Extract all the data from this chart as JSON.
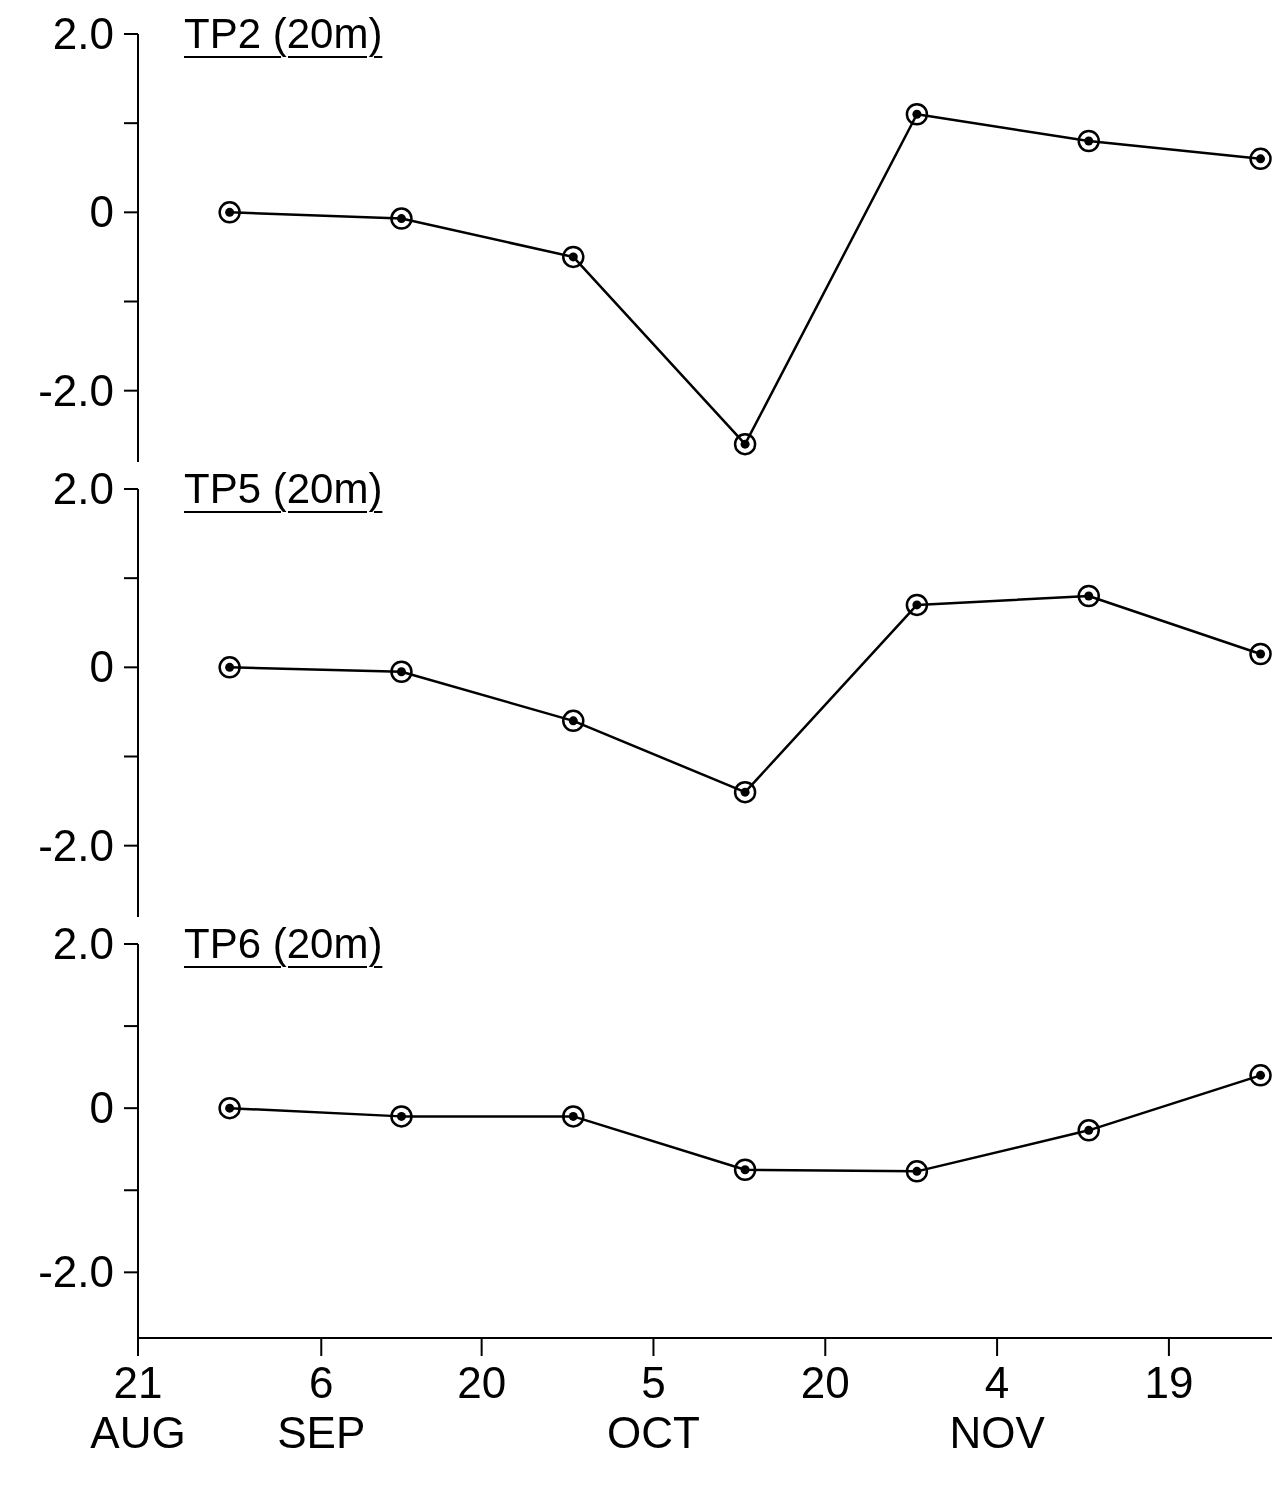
{
  "chart_data": [
    {
      "type": "line",
      "title": "TP2 (20m)",
      "x": [
        "--08-29",
        "--09-13",
        "--09-28",
        "--10-13",
        "--10-28",
        "--11-12",
        "--11-27"
      ],
      "series": [
        {
          "color": "#000000",
          "values": [
            0.0,
            -0.07,
            -0.5,
            -2.6,
            1.1,
            0.8,
            0.6
          ]
        }
      ],
      "xlim": [
        "--08-21",
        "--11-28"
      ],
      "xticks": [
        {
          "value": "--08-21",
          "label": "21\nAUG"
        },
        {
          "value": "--09-06",
          "label": "6\nSEP"
        },
        {
          "value": "--09-20",
          "label": "20"
        },
        {
          "value": "--10-05",
          "label": "5\nOCT"
        },
        {
          "value": "--10-20",
          "label": "20"
        },
        {
          "value": "--11-04",
          "label": "4\nNOV"
        },
        {
          "value": "--11-19",
          "label": "19"
        }
      ],
      "ylim": [
        -2.8,
        2.0
      ],
      "yticks": [
        {
          "value": 2,
          "label": "2.0"
        },
        {
          "value": 1,
          "label": null
        },
        {
          "value": 0,
          "label": "0"
        },
        {
          "value": -1,
          "label": null
        },
        {
          "value": -2,
          "label": "-2.0"
        }
      ],
      "tick_labels": "y",
      "marker": "circle",
      "line_style": "solid",
      "grid": false,
      "legend": false
    },
    {
      "type": "line",
      "title": "TP5 (20m)",
      "x": [
        "--08-29",
        "--09-13",
        "--09-28",
        "--10-13",
        "--10-28",
        "--11-12",
        "--11-27"
      ],
      "series": [
        {
          "color": "#000000",
          "values": [
            0.0,
            -0.05,
            -0.6,
            -1.4,
            0.7,
            0.8,
            0.15
          ]
        }
      ],
      "xlim": [
        "--08-21",
        "--11-28"
      ],
      "xticks": [
        {
          "value": "--08-21",
          "label": "21\nAUG"
        },
        {
          "value": "--09-06",
          "label": "6\nSEP"
        },
        {
          "value": "--09-20",
          "label": "20"
        },
        {
          "value": "--10-05",
          "label": "5\nOCT"
        },
        {
          "value": "--10-20",
          "label": "20"
        },
        {
          "value": "--11-04",
          "label": "4\nNOV"
        },
        {
          "value": "--11-19",
          "label": "19"
        }
      ],
      "ylim": [
        -2.8,
        2.0
      ],
      "yticks": [
        {
          "value": 2,
          "label": "2.0"
        },
        {
          "value": 1,
          "label": null
        },
        {
          "value": 0,
          "label": "0"
        },
        {
          "value": -1,
          "label": null
        },
        {
          "value": -2,
          "label": "-2.0"
        }
      ],
      "tick_labels": "y",
      "marker": "circle",
      "line_style": "solid",
      "grid": false,
      "legend": false
    },
    {
      "type": "line",
      "title": "TP6 (20m)",
      "x": [
        "--08-29",
        "--09-13",
        "--09-28",
        "--10-13",
        "--10-28",
        "--11-12",
        "--11-27"
      ],
      "series": [
        {
          "color": "#000000",
          "values": [
            0.0,
            -0.1,
            -0.1,
            -0.75,
            -0.77,
            -0.27,
            0.4
          ]
        }
      ],
      "xlim": [
        "--08-21",
        "--11-28"
      ],
      "xticks": [
        {
          "value": "--08-21",
          "label": "21\nAUG"
        },
        {
          "value": "--09-06",
          "label": "6\nSEP"
        },
        {
          "value": "--09-20",
          "label": "20"
        },
        {
          "value": "--10-05",
          "label": "5\nOCT"
        },
        {
          "value": "--10-20",
          "label": "20"
        },
        {
          "value": "--11-04",
          "label": "4\nNOV"
        },
        {
          "value": "--11-19",
          "label": "19"
        }
      ],
      "ylim": [
        -2.8,
        2.0
      ],
      "yticks": [
        {
          "value": 2,
          "label": "2.0"
        },
        {
          "value": 1,
          "label": null
        },
        {
          "value": 0,
          "label": "0"
        },
        {
          "value": -1,
          "label": null
        },
        {
          "value": -2,
          "label": "-2.0"
        }
      ],
      "marker": "circle",
      "line_style": "solid",
      "grid": false,
      "legend": false
    }
  ]
}
